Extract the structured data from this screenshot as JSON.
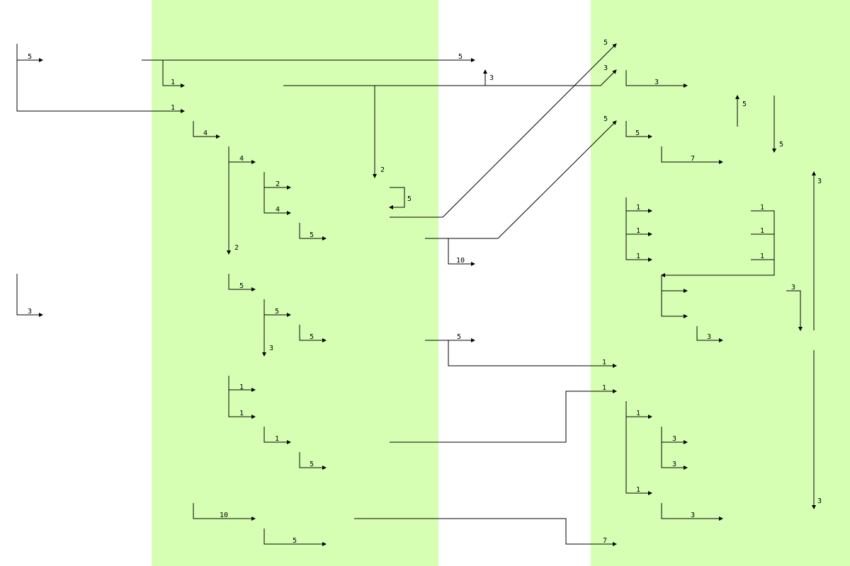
{
  "colors": {
    "lane": "#d7ffb4",
    "line": "#000000",
    "background": "#ffffff"
  },
  "labels": [
    "5",
    "5",
    "1",
    "3",
    "3",
    "1",
    "3",
    "4",
    "4",
    "5",
    "5",
    "5",
    "7",
    "2",
    "2",
    "5",
    "4",
    "5",
    "2",
    "1",
    "1",
    "1",
    "1",
    "1",
    "1",
    "10",
    "3",
    "5",
    "5",
    "5",
    "1",
    "3",
    "1",
    "5",
    "3",
    "1",
    "1",
    "1",
    "1",
    "1",
    "3",
    "3",
    "5",
    "1",
    "10",
    "3",
    "3",
    "7"
  ]
}
